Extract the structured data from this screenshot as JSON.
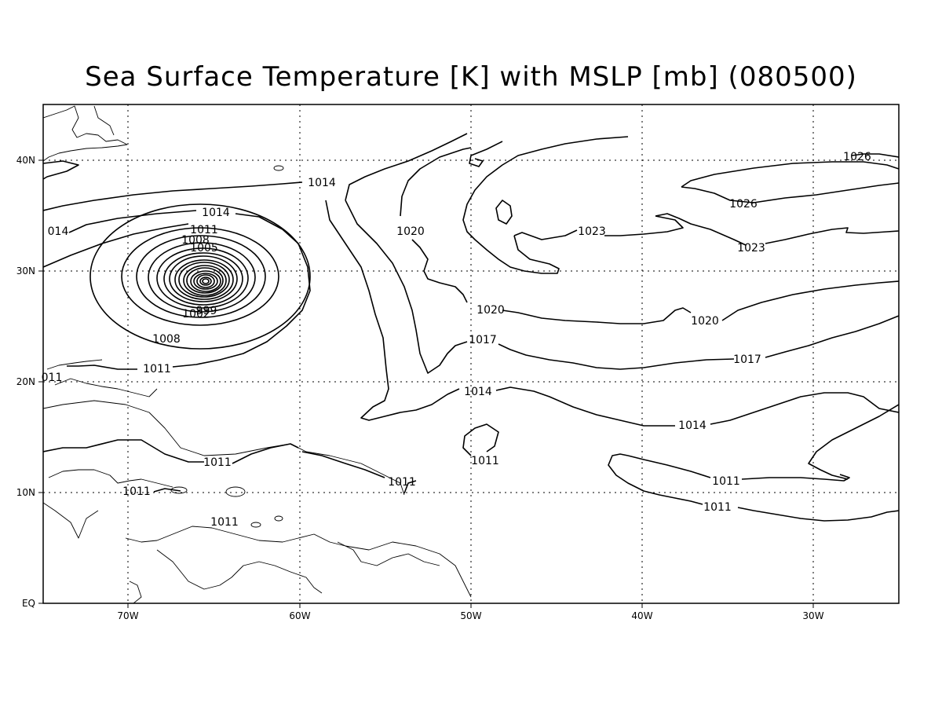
{
  "title": "Sea Surface Temperature [K] with MSLP [mb] (080500)",
  "axes": {
    "x_ticks": [
      "70W",
      "60W",
      "50W",
      "40W",
      "30W"
    ],
    "y_ticks": [
      "EQ",
      "10N",
      "20N",
      "30N",
      "40N"
    ]
  },
  "contour_labels": [
    "1026",
    "1026",
    "1023",
    "1023",
    "1020",
    "1020",
    "1020",
    "1017",
    "1017",
    "1014",
    "1014",
    "1014",
    "1014",
    "1011",
    "1011",
    "1011",
    "1011",
    "1011",
    "1011",
    "1011",
    "1011",
    "1011",
    "1008",
    "1008",
    "1005",
    "1002",
    "999",
    "996",
    "011",
    "014"
  ],
  "colors": {
    "lines": "#000000",
    "background": "#ffffff"
  }
}
